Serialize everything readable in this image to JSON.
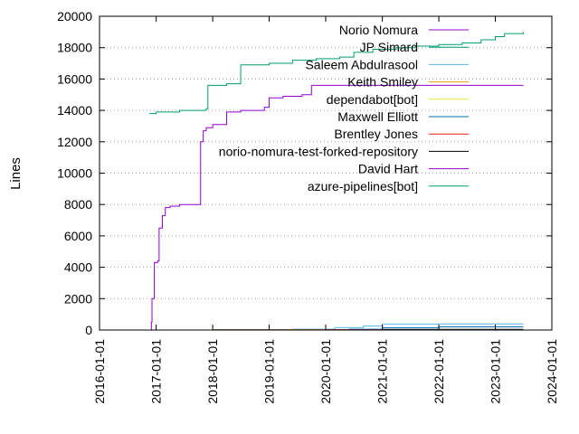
{
  "chart_data": {
    "type": "line",
    "ylabel": "Lines",
    "xlabel": "",
    "grid": "horizontal dotted",
    "legend_position": "top-right",
    "xlim": [
      "2016-01-01",
      "2024-01-01"
    ],
    "ylim": [
      0,
      20000
    ],
    "x_ticks": [
      "2016-01-01",
      "2017-01-01",
      "2018-01-01",
      "2019-01-01",
      "2020-01-01",
      "2021-01-01",
      "2022-01-01",
      "2023-01-01",
      "2024-01-01"
    ],
    "y_ticks": [
      0,
      2000,
      4000,
      6000,
      8000,
      10000,
      12000,
      14000,
      16000,
      18000,
      20000
    ],
    "series": [
      {
        "name": "Norio Nomura",
        "color": "#9400d3",
        "x": [
          "2016-11-25",
          "2016-12-01",
          "2016-12-05",
          "2016-12-20",
          "2017-01-10",
          "2017-01-20",
          "2017-02-10",
          "2017-03-01",
          "2017-04-01",
          "2017-06-01",
          "2017-09-01",
          "2017-10-15",
          "2017-11-01",
          "2017-11-20",
          "2018-01-01",
          "2018-04-01",
          "2018-07-01",
          "2018-12-01",
          "2019-01-01",
          "2019-04-01",
          "2019-08-01",
          "2019-10-01",
          "2020-06-01",
          "2021-01-01",
          "2022-01-01",
          "2023-01-01",
          "2023-07-01"
        ],
        "y": [
          0,
          500,
          2000,
          4300,
          4400,
          6500,
          7300,
          7800,
          7900,
          8000,
          8000,
          12000,
          12700,
          12900,
          13100,
          13900,
          14000,
          14200,
          14800,
          14900,
          15000,
          15600,
          15600,
          15600,
          15600,
          15600,
          15600
        ]
      },
      {
        "name": "JP Simard",
        "color": "#009e73",
        "x": [
          "2016-11-20",
          "2017-01-01",
          "2017-06-01",
          "2017-11-20",
          "2017-12-01",
          "2018-04-01",
          "2018-07-01",
          "2019-01-01",
          "2019-06-01",
          "2019-11-01",
          "2020-04-01",
          "2020-07-01",
          "2020-11-01",
          "2021-04-01",
          "2021-08-01",
          "2022-01-01",
          "2022-06-01",
          "2022-10-01",
          "2023-01-01",
          "2023-03-01",
          "2023-07-01"
        ],
        "y": [
          13800,
          13900,
          14000,
          14100,
          15600,
          15700,
          16900,
          17000,
          17200,
          17300,
          17400,
          17700,
          17900,
          18000,
          18100,
          18200,
          18300,
          18500,
          18700,
          18900,
          19000
        ]
      },
      {
        "name": "Saleem Abdulrasool",
        "color": "#56b4e9",
        "x": [
          "2018-01-01",
          "2019-06-01",
          "2020-03-01",
          "2020-09-01",
          "2021-01-01",
          "2022-01-01",
          "2023-07-01"
        ],
        "y": [
          0,
          50,
          150,
          250,
          380,
          390,
          390
        ]
      },
      {
        "name": "Keith Smiley",
        "color": "#e69f00",
        "x": [
          "2018-01-01",
          "2023-07-01"
        ],
        "y": [
          30,
          30
        ]
      },
      {
        "name": "dependabot[bot]",
        "color": "#f0e442",
        "x": [
          "2019-01-01",
          "2023-07-01"
        ],
        "y": [
          10,
          10
        ]
      },
      {
        "name": "Maxwell Elliott",
        "color": "#0072b2",
        "x": [
          "2018-01-01",
          "2020-06-01",
          "2021-01-01",
          "2022-01-01",
          "2023-07-01"
        ],
        "y": [
          0,
          50,
          150,
          200,
          200
        ]
      },
      {
        "name": "Brentley Jones",
        "color": "#e51e10",
        "x": [
          "2020-01-01",
          "2023-07-01"
        ],
        "y": [
          20,
          20
        ]
      },
      {
        "name": "norio-nomura-test-forked-repository",
        "color": "#000000",
        "x": [
          "2019-11-01",
          "2021-01-01",
          "2023-07-01"
        ],
        "y": [
          0,
          40,
          40
        ]
      },
      {
        "name": "David Hart",
        "color": "#9400d3",
        "x": [
          "2018-01-01",
          "2023-07-01"
        ],
        "y": [
          5,
          5
        ]
      },
      {
        "name": "azure-pipelines[bot]",
        "color": "#009e73",
        "x": [
          "2018-01-01",
          "2023-07-01"
        ],
        "y": [
          10,
          10
        ]
      }
    ]
  }
}
